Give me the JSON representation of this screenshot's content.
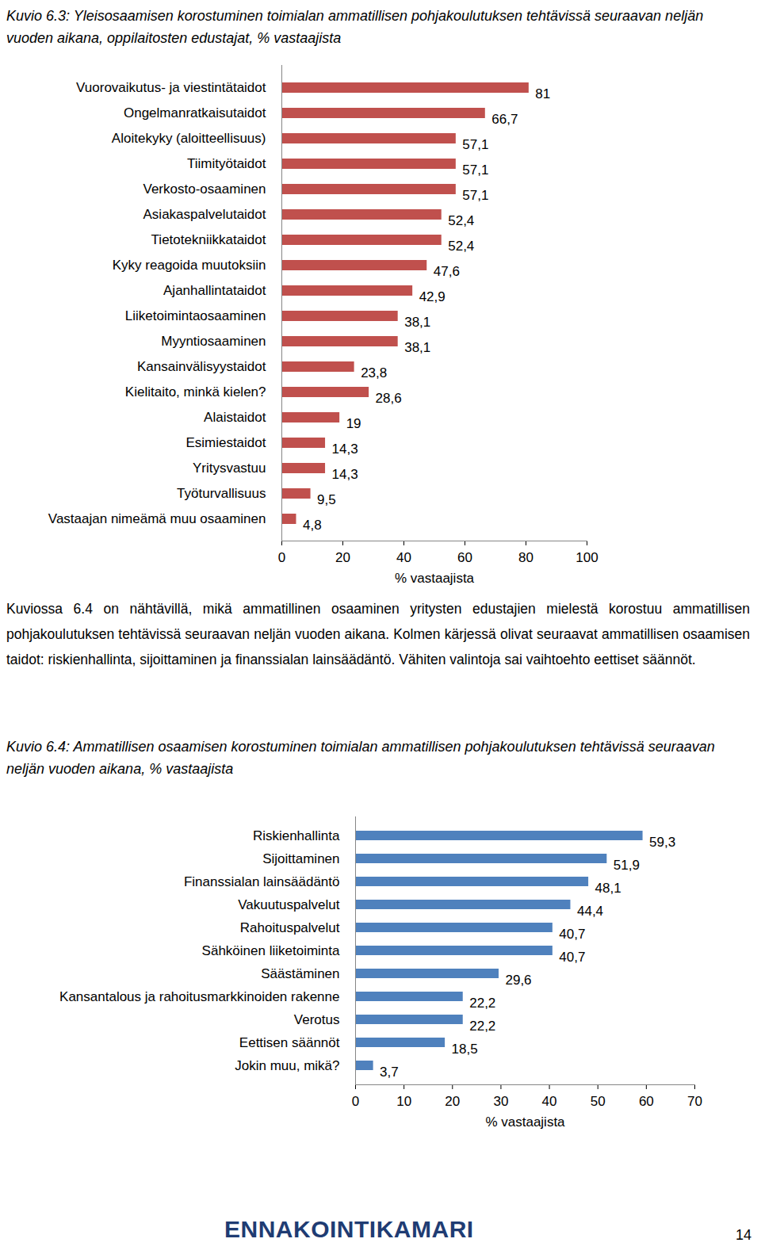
{
  "chart_data": [
    {
      "type": "bar",
      "orientation": "horizontal",
      "title": "Kuvio 6.3: Yleisosaamisen korostuminen toimialan ammatillisen pohjakoulutuksen tehtävissä seuraavan neljän vuoden aikana, oppilaitosten edustajat, % vastaajista",
      "x_label": "% vastaajista",
      "categories": [
        "Vuorovaikutus- ja viestintätaidot",
        "Ongelmanratkaisutaidot",
        "Aloitekyky (aloitteellisuus)",
        "Tiimityötaidot",
        "Verkosto-osaaminen",
        "Asiakaspalvelutaidot",
        "Tietotekniikkataidot",
        "Kyky reagoida muutoksiin",
        "Ajanhallintataidot",
        "Liiketoimintaosaaminen",
        "Myyntiosaaminen",
        "Kansainvälisyystaidot",
        "Kielitaito, minkä kielen?",
        "Alaistaidot",
        "Esimiestaidot",
        "Yritysvastuu",
        "Työturvallisuus",
        "Vastaajan nimeämä muu osaaminen"
      ],
      "values": [
        81,
        66.7,
        57.1,
        57.1,
        57.1,
        52.4,
        52.4,
        47.6,
        42.9,
        38.1,
        38.1,
        23.8,
        28.6,
        19,
        14.3,
        14.3,
        9.5,
        4.8
      ],
      "value_labels": [
        "81",
        "66,7",
        "57,1",
        "57,1",
        "57,1",
        "52,4",
        "52,4",
        "47,6",
        "42,9",
        "38,1",
        "38,1",
        "23,8",
        "28,6",
        "19",
        "14,3",
        "14,3",
        "9,5",
        "4,8"
      ],
      "color": "#c0504d",
      "xlim": [
        0,
        100
      ],
      "xticks": [
        0,
        20,
        40,
        60,
        80,
        100
      ],
      "grid": false,
      "data_labels": true
    },
    {
      "type": "bar",
      "orientation": "horizontal",
      "title": "Kuvio 6.4: Ammatillisen osaamisen korostuminen toimialan ammatillisen pohjakoulutuksen tehtävissä seuraavan neljän vuoden aikana, % vastaajista",
      "x_label": "% vastaajista",
      "categories": [
        "Riskienhallinta",
        "Sijoittaminen",
        "Finanssialan lainsäädäntö",
        "Vakuutuspalvelut",
        "Rahoituspalvelut",
        "Sähköinen liiketoiminta",
        "Säästäminen",
        "Kansantalous ja rahoitusmarkkinoiden rakenne",
        "Verotus",
        "Eettisen säännöt",
        "Jokin muu, mikä?"
      ],
      "values": [
        59.3,
        51.9,
        48.1,
        44.4,
        40.7,
        40.7,
        29.6,
        22.2,
        22.2,
        18.5,
        3.7
      ],
      "value_labels": [
        "59,3",
        "51,9",
        "48,1",
        "44,4",
        "40,7",
        "40,7",
        "29,6",
        "22,2",
        "22,2",
        "18,5",
        "3,7"
      ],
      "color": "#4f81bd",
      "xlim": [
        0,
        70
      ],
      "xticks": [
        0,
        10,
        20,
        30,
        40,
        50,
        60,
        70
      ],
      "grid": false,
      "data_labels": true
    }
  ],
  "document": {
    "paragraph": "Kuviossa 6.4 on nähtävillä, mikä ammatillinen osaaminen yritysten edustajien mielestä korostuu ammatillisen pohjakoulutuksen tehtävissä seuraavan neljän vuoden aikana. Kolmen kärjessä olivat seuraavat ammatillisen osaamisen taidot: riskienhallinta, sijoittaminen ja finanssialan lainsäädäntö. Vähiten valintoja sai vaihtoehto eettiset säännöt.",
    "footer_logo": "ENNAKOINTIKAMARI",
    "page_number": "14"
  }
}
